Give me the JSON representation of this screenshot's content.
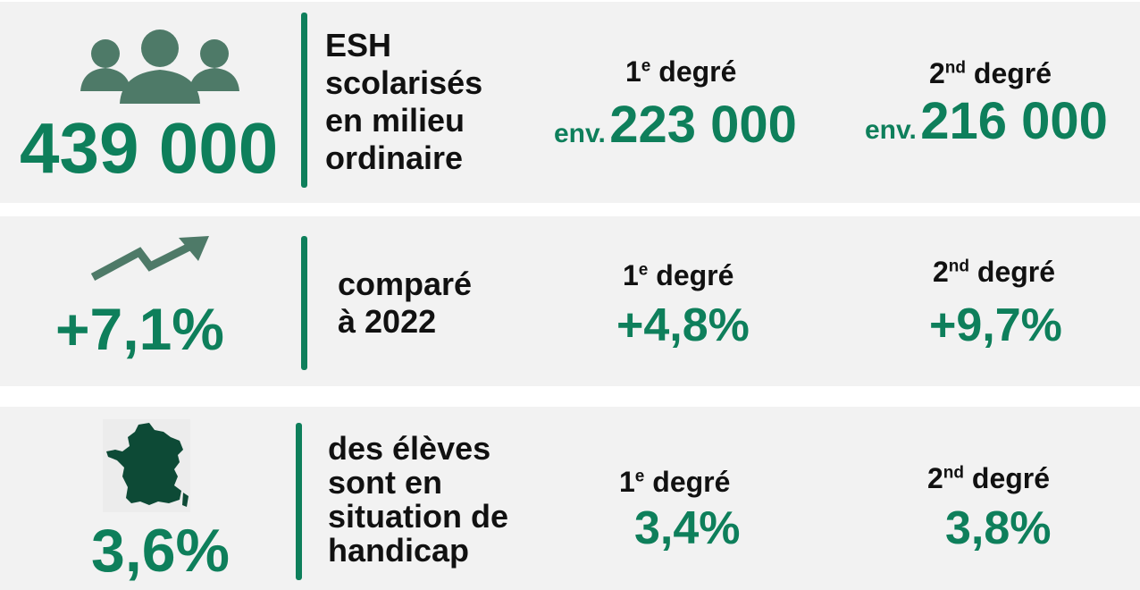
{
  "colors": {
    "accent": "#0e7f5b",
    "icon_gray": "#4e7a68",
    "panel_bg": "#f2f2f2",
    "text": "#111111"
  },
  "rows": [
    {
      "icon": "people-group-icon",
      "main_value": "439 000",
      "description": [
        "ESH",
        "scolarisés",
        "en milieu",
        "ordinaire"
      ],
      "primary": {
        "label_num": "1",
        "label_sup": "e",
        "label_text": " degré",
        "prefix": "env.",
        "value": "223 000"
      },
      "secondary": {
        "label_num": "2",
        "label_sup": "nd",
        "label_text": " degré",
        "prefix": "env.",
        "value": "216 000"
      }
    },
    {
      "icon": "trend-up-arrow-icon",
      "main_value": "+7,1%",
      "description": [
        "comparé",
        "à 2022"
      ],
      "primary": {
        "label_num": "1",
        "label_sup": "e",
        "label_text": " degré",
        "value": "+4,8%"
      },
      "secondary": {
        "label_num": "2",
        "label_sup": "nd",
        "label_text": " degré",
        "value": "+9,7%"
      }
    },
    {
      "icon": "france-map-icon",
      "main_value": "3,6%",
      "description": [
        "des élèves",
        "sont en",
        "situation de",
        "handicap"
      ],
      "primary": {
        "label_num": "1",
        "label_sup": "e",
        "label_text": " degré",
        "value": "3,4%"
      },
      "secondary": {
        "label_num": "2",
        "label_sup": "nd",
        "label_text": " degré",
        "value": "3,8%"
      }
    }
  ]
}
